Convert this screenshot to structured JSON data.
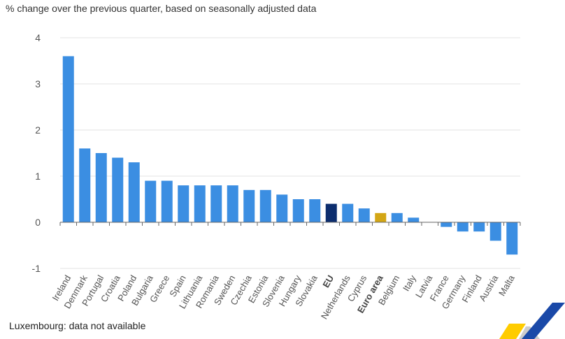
{
  "header": {
    "subtitle": "% change over the previous quarter, based on seasonally adjusted data"
  },
  "footer": {
    "note": "Luxembourg: data not available"
  },
  "logo": {
    "name": "eurostat-logo",
    "colors": [
      "#ffcc00",
      "#1a49a8",
      "#cccccc"
    ]
  },
  "chart_data": {
    "type": "bar",
    "title": "",
    "xlabel": "",
    "ylabel": "% change over the previous quarter, based on seasonally adjusted data",
    "ylim": [
      -1,
      4
    ],
    "yticks": [
      -1,
      0,
      1,
      2,
      3,
      4
    ],
    "grid": true,
    "legend": "none",
    "categories": [
      "Ireland",
      "Denmark",
      "Portugal",
      "Croatia",
      "Poland",
      "Bulgaria",
      "Greece",
      "Spain",
      "Lithuania",
      "Romania",
      "Sweden",
      "Czechia",
      "Estonia",
      "Slovenia",
      "Hungary",
      "Slovakia",
      "EU",
      "Netherlands",
      "Cyprus",
      "Euro area",
      "Belgium",
      "Italy",
      "Latvia",
      "France",
      "Germany",
      "Finland",
      "Austria",
      "Malta"
    ],
    "values": [
      3.6,
      1.6,
      1.5,
      1.4,
      1.3,
      0.9,
      0.9,
      0.8,
      0.8,
      0.8,
      0.8,
      0.7,
      0.7,
      0.6,
      0.5,
      0.5,
      0.4,
      0.4,
      0.3,
      0.2,
      0.2,
      0.1,
      0.0,
      -0.1,
      -0.2,
      -0.2,
      -0.4,
      -0.7
    ],
    "highlighted_categories": [
      "EU",
      "Euro area"
    ],
    "colors": {
      "default": "#3b8ee2",
      "EU": "#0c2d6e",
      "Euro area": "#d3a615",
      "grid": "#e3e3e3",
      "axis": "#666666"
    }
  }
}
